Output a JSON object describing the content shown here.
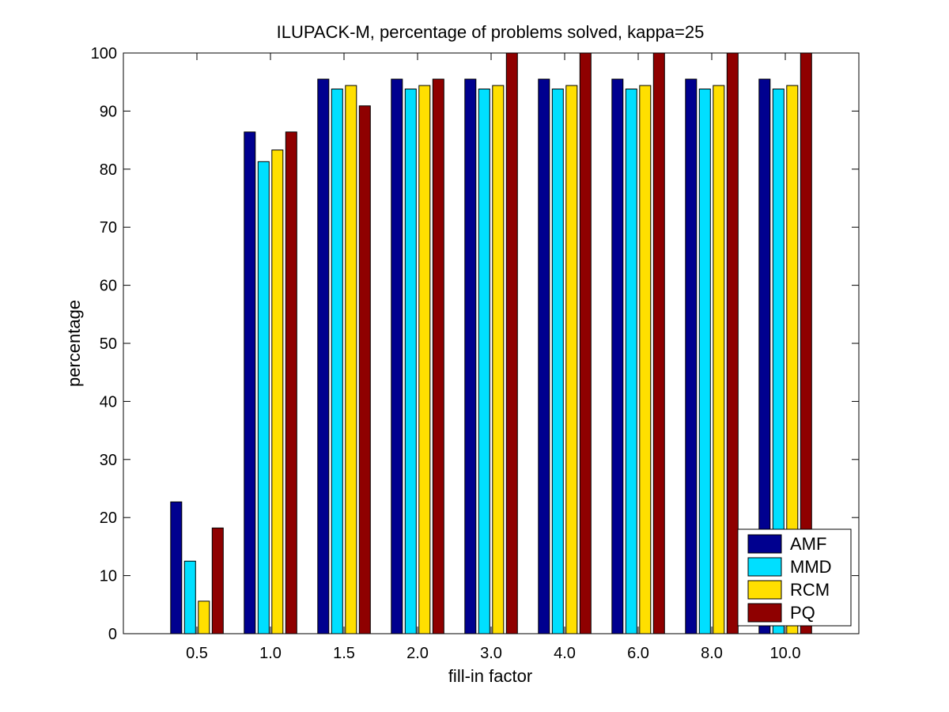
{
  "chart_data": {
    "type": "bar",
    "title": "ILUPACK-M, percentage of problems solved, kappa=25",
    "xlabel": "fill-in factor",
    "ylabel": "percentage",
    "categories": [
      "0.5",
      "1.0",
      "1.5",
      "2.0",
      "3.0",
      "4.0",
      "6.0",
      "8.0",
      "10.0"
    ],
    "ylim": [
      0,
      100
    ],
    "yticks": [
      0,
      10,
      20,
      30,
      40,
      50,
      60,
      70,
      80,
      90,
      100
    ],
    "grid": false,
    "legend_position": "bottom-right",
    "series": [
      {
        "name": "AMF",
        "color": "#00008f",
        "values": [
          22.7,
          86.4,
          95.5,
          95.5,
          95.5,
          95.5,
          95.5,
          95.5,
          95.5
        ]
      },
      {
        "name": "MMD",
        "color": "#00dfff",
        "values": [
          12.5,
          81.3,
          93.8,
          93.8,
          93.8,
          93.8,
          93.8,
          93.8,
          93.8
        ]
      },
      {
        "name": "RCM",
        "color": "#ffdf00",
        "values": [
          5.6,
          83.3,
          94.4,
          94.4,
          94.4,
          94.4,
          94.4,
          94.4,
          94.4
        ]
      },
      {
        "name": "PQ",
        "color": "#8f0000",
        "values": [
          18.2,
          86.4,
          90.9,
          95.5,
          100,
          100,
          100,
          100,
          100
        ]
      }
    ]
  }
}
